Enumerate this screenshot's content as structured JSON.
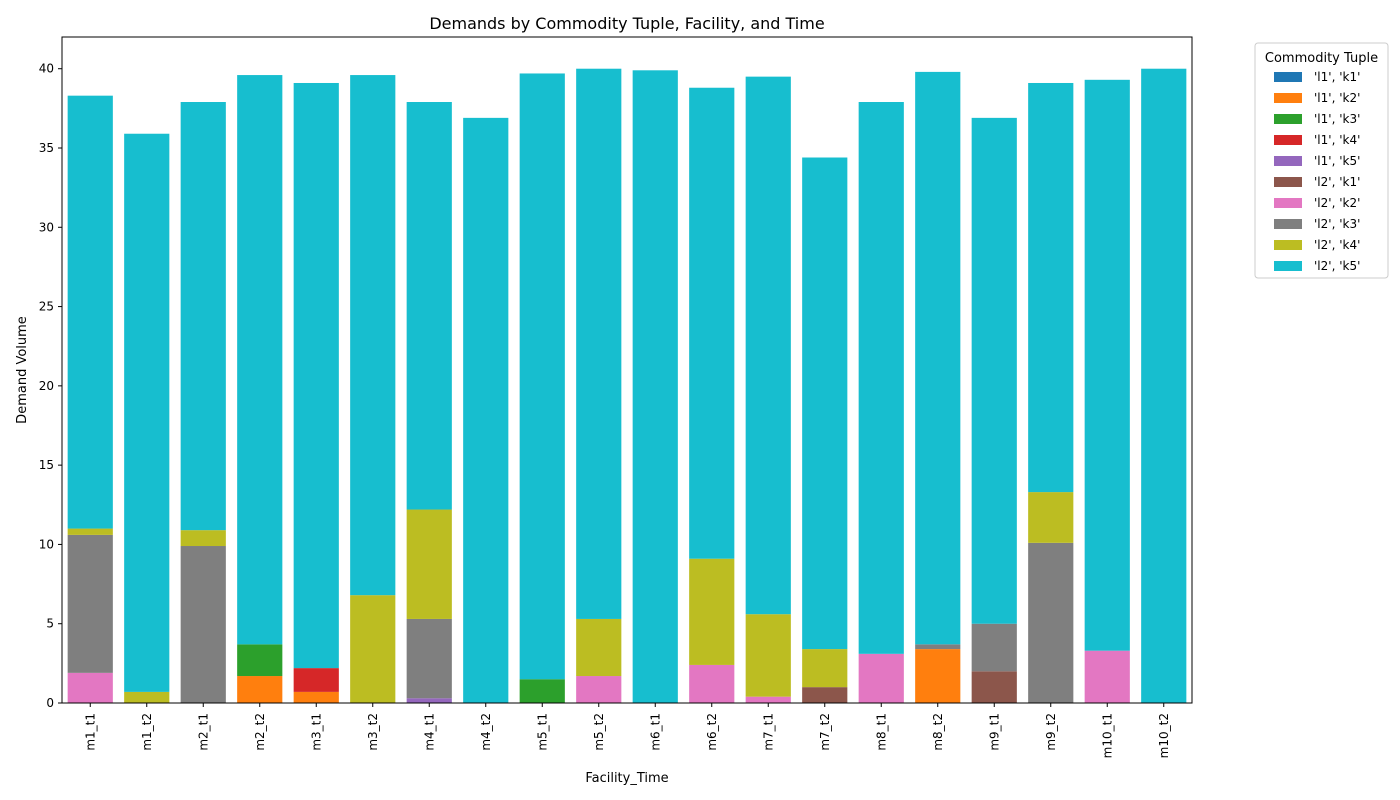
{
  "chart_data": {
    "type": "bar",
    "stacked": true,
    "title": "Demands by Commodity Tuple, Facility, and Time",
    "xlabel": "Facility_Time",
    "ylabel": "Demand Volume",
    "ylim": [
      0,
      42
    ],
    "yticks": [
      0,
      5,
      10,
      15,
      20,
      25,
      30,
      35,
      40
    ],
    "grid": false,
    "legend": {
      "title": "Commodity Tuple",
      "placement": "outside-right-top"
    },
    "categories": [
      "m1_t1",
      "m1_t2",
      "m2_t1",
      "m2_t2",
      "m3_t1",
      "m3_t2",
      "m4_t1",
      "m4_t2",
      "m5_t1",
      "m5_t2",
      "m6_t1",
      "m6_t2",
      "m7_t1",
      "m7_t2",
      "m8_t1",
      "m8_t2",
      "m9_t1",
      "m9_t2",
      "m10_t1",
      "m10_t2"
    ],
    "series": [
      {
        "name": "'l1', 'k1'",
        "color": "#1f77b4",
        "values": [
          0,
          0,
          0,
          0,
          0,
          0,
          0,
          0,
          0,
          0,
          0,
          0,
          0,
          0,
          0,
          0,
          0,
          0,
          0,
          0
        ]
      },
      {
        "name": "'l1', 'k2'",
        "color": "#ff7f0e",
        "values": [
          0,
          0,
          0,
          1.7,
          0.7,
          0,
          0,
          0,
          0,
          0,
          0,
          0,
          0,
          0,
          0,
          3.4,
          0,
          0,
          0,
          0
        ]
      },
      {
        "name": "'l1', 'k3'",
        "color": "#2ca02c",
        "values": [
          0,
          0,
          0,
          2.0,
          0,
          0,
          0,
          0,
          1.5,
          0,
          0,
          0,
          0,
          0,
          0,
          0,
          0,
          0,
          0,
          0
        ]
      },
      {
        "name": "'l1', 'k4'",
        "color": "#d62728",
        "values": [
          0,
          0,
          0,
          0,
          1.5,
          0,
          0,
          0,
          0,
          0,
          0,
          0,
          0,
          0,
          0,
          0,
          0,
          0,
          0,
          0
        ]
      },
      {
        "name": "'l1', 'k5'",
        "color": "#9467bd",
        "values": [
          0,
          0,
          0,
          0,
          0,
          0,
          0.3,
          0,
          0,
          0,
          0,
          0,
          0,
          0,
          0,
          0,
          0,
          0,
          0,
          0
        ]
      },
      {
        "name": "'l2', 'k1'",
        "color": "#8c564b",
        "values": [
          0,
          0,
          0,
          0,
          0,
          0,
          0,
          0,
          0,
          0,
          0,
          0,
          0,
          1.0,
          0,
          0,
          2.0,
          0,
          0,
          0
        ]
      },
      {
        "name": "'l2', 'k2'",
        "color": "#e377c2",
        "values": [
          1.9,
          0,
          0,
          0,
          0,
          0,
          0,
          0,
          0,
          1.7,
          0,
          2.4,
          0.4,
          0,
          3.1,
          0,
          0,
          0,
          3.3,
          0
        ]
      },
      {
        "name": "'l2', 'k3'",
        "color": "#7f7f7f",
        "values": [
          8.7,
          0,
          9.9,
          0,
          0,
          0,
          5.0,
          0,
          0,
          0,
          0,
          0,
          0,
          0,
          0,
          0.3,
          3.0,
          10.1,
          0,
          0
        ]
      },
      {
        "name": "'l2', 'k4'",
        "color": "#bcbd22",
        "values": [
          0.4,
          0.7,
          1.0,
          0,
          0,
          6.8,
          6.9,
          0,
          0,
          3.6,
          0,
          6.7,
          5.2,
          2.4,
          0,
          0,
          0,
          3.2,
          0,
          0
        ]
      },
      {
        "name": "'l2', 'k5'",
        "color": "#17becf",
        "values": [
          27.3,
          35.2,
          27.0,
          35.9,
          36.9,
          32.8,
          25.7,
          36.9,
          38.2,
          34.7,
          39.9,
          29.7,
          33.9,
          31.0,
          34.8,
          36.1,
          31.9,
          25.8,
          36.0,
          40.0
        ]
      }
    ]
  }
}
